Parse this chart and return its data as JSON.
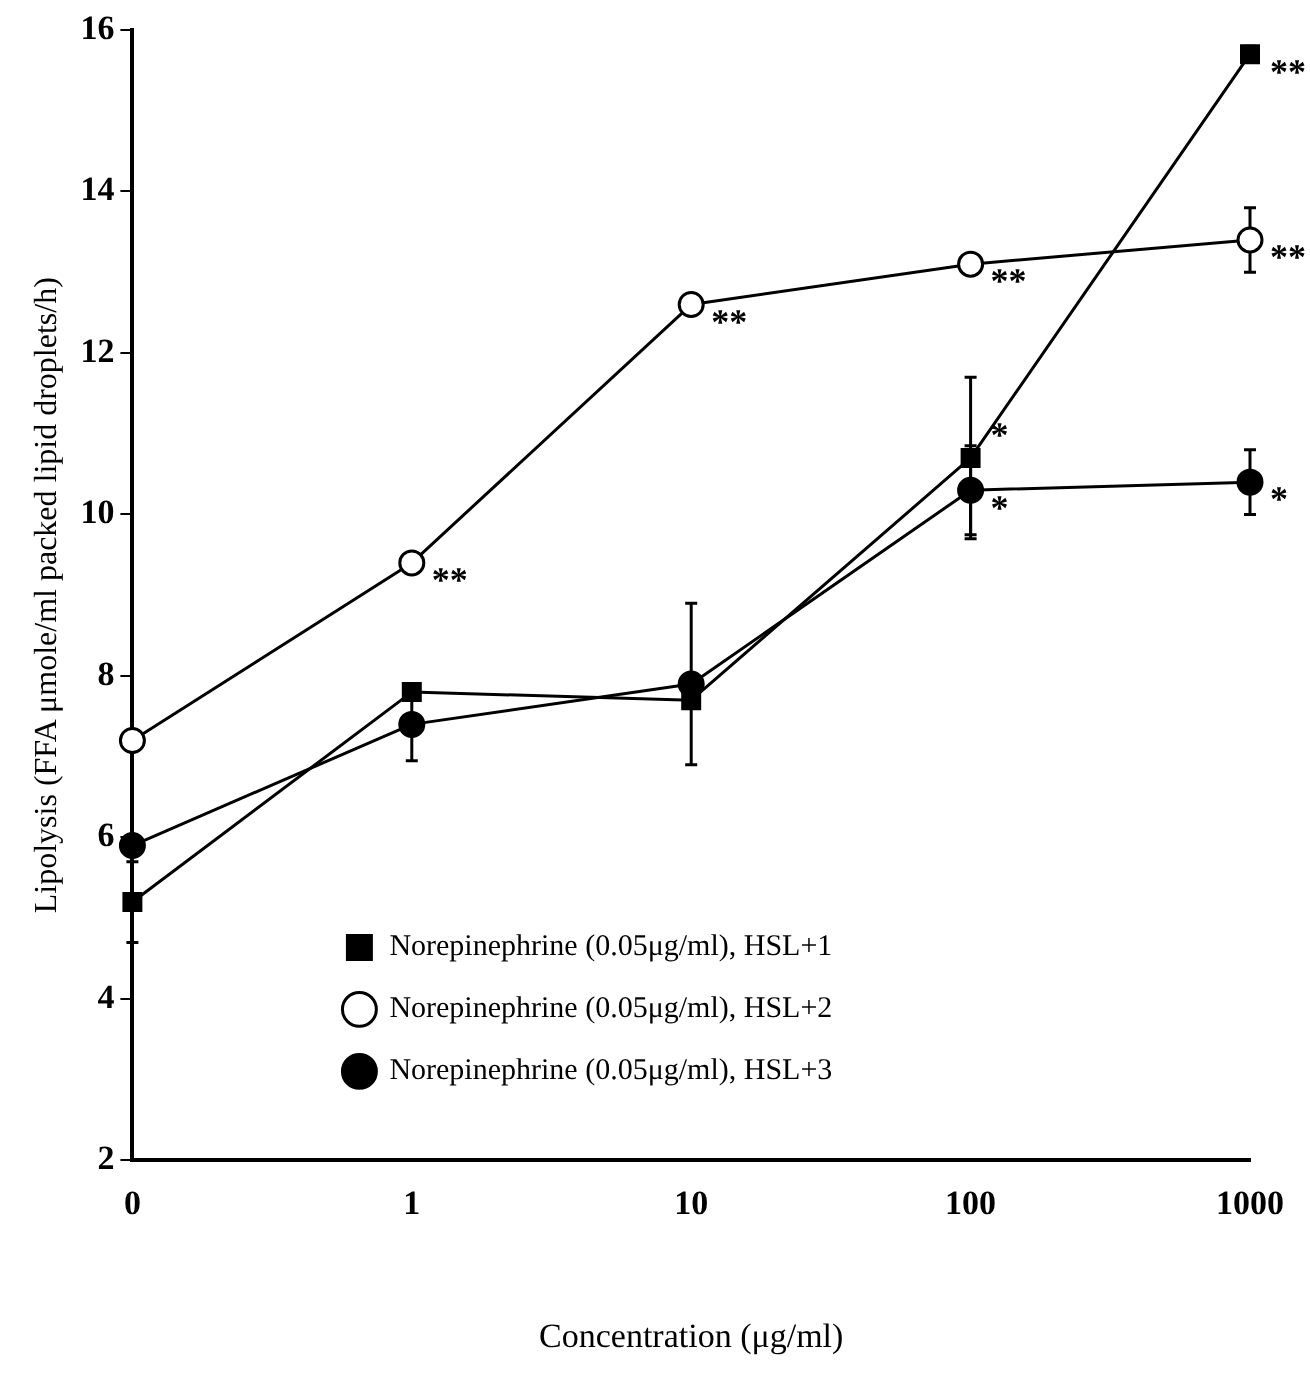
{
  "chart_data": {
    "type": "line",
    "xlabel": "Concentration (μg/ml)",
    "ylabel": "Lipolysis (FFA μmole/ml packed lipid droplets/h)",
    "categories": [
      "0",
      "1",
      "10",
      "100",
      "1000"
    ],
    "ylim": [
      2,
      16
    ],
    "yticks": [
      2,
      4,
      6,
      8,
      10,
      12,
      14,
      16
    ],
    "grid": false,
    "legend": "bottom",
    "series": [
      {
        "name": "Norepinephrine (0.05μg/ml), HSL+1",
        "color": "#000000",
        "marker": "square",
        "values": [
          5.2,
          7.8,
          7.7,
          10.7,
          15.7
        ],
        "errors": [
          0.5,
          null,
          null,
          1.0,
          0.1
        ]
      },
      {
        "name": "Norepinephrine (0.05μg/ml), HSL+2",
        "color": "#000000",
        "marker": "circle-open",
        "values": [
          7.2,
          9.4,
          12.6,
          13.1,
          13.4
        ],
        "errors": [
          null,
          null,
          null,
          null,
          0.4
        ]
      },
      {
        "name": "Norepinephrine (0.05μg/ml), HSL+3",
        "color": "#000000",
        "marker": "circle",
        "values": [
          5.9,
          7.4,
          7.9,
          10.3,
          10.4
        ],
        "errors": [
          null,
          0.45,
          1.0,
          0.55,
          0.4
        ]
      }
    ],
    "annotations": [
      {
        "text": "**",
        "x": "1",
        "y": 9.4
      },
      {
        "text": "**",
        "x": "10",
        "y": 12.6
      },
      {
        "text": "**",
        "x": "100",
        "y": 13.1
      },
      {
        "text": "**",
        "x": "1000",
        "y": 13.4
      },
      {
        "text": "**",
        "x": "1000",
        "y": 15.7
      },
      {
        "text": "*",
        "x": "100",
        "y": 11.2
      },
      {
        "text": "*",
        "x": "100",
        "y": 10.3
      },
      {
        "text": "*",
        "x": "1000",
        "y": 10.4
      }
    ]
  }
}
